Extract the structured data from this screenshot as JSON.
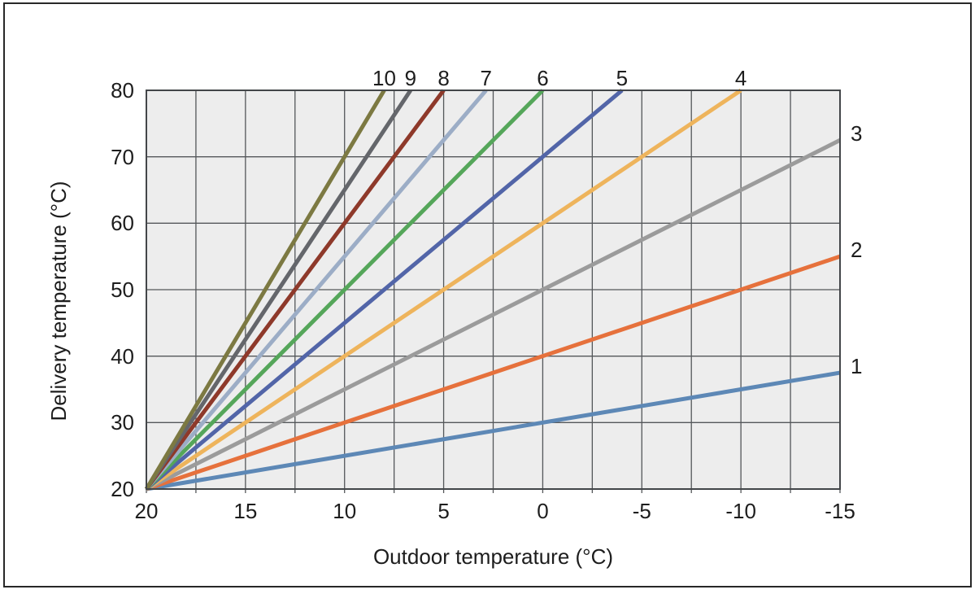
{
  "chart_data": {
    "type": "line",
    "title": "",
    "xlabel": "Outdoor temperature (°C)",
    "ylabel": "Delivery temperature (°C)",
    "xlim": [
      20,
      -15
    ],
    "ylim": [
      20,
      80
    ],
    "x_axis_reversed": true,
    "x_major_ticks": [
      20,
      15,
      10,
      5,
      0,
      -5,
      -10,
      -15
    ],
    "x_grid_step": 2.5,
    "y_ticks": [
      20,
      30,
      40,
      50,
      60,
      70,
      80
    ],
    "y_grid_step": 10,
    "grid": true,
    "legend_position": "labels-on-curves",
    "plot_bg_color": "#ededed",
    "grid_color": "#54575a",
    "plot_border_color": "#434649",
    "text_color": "#1d1d1d",
    "convergence_point": [
      20,
      20
    ],
    "curves": [
      {
        "label": "1",
        "slope": 0.5,
        "color": "#5d88b6",
        "points": [
          [
            20,
            20
          ],
          [
            -15,
            37.5
          ]
        ],
        "label_side": "right"
      },
      {
        "label": "2",
        "slope": 1.0,
        "color": "#e6713c",
        "points": [
          [
            20,
            20
          ],
          [
            -15,
            55
          ]
        ],
        "label_side": "right"
      },
      {
        "label": "3",
        "slope": 1.5,
        "color": "#9b9b9b",
        "points": [
          [
            20,
            20
          ],
          [
            -15,
            72.5
          ]
        ],
        "label_side": "right"
      },
      {
        "label": "4",
        "slope": 2.0,
        "color": "#eeb45c",
        "points": [
          [
            20,
            20
          ],
          [
            -10,
            80
          ]
        ],
        "label_side": "top"
      },
      {
        "label": "5",
        "slope": 2.5,
        "color": "#5265a8",
        "points": [
          [
            20,
            20
          ],
          [
            -4,
            80
          ]
        ],
        "label_side": "top"
      },
      {
        "label": "6",
        "slope": 3.0,
        "color": "#55a65a",
        "points": [
          [
            20,
            20
          ],
          [
            0,
            80
          ]
        ],
        "label_side": "top"
      },
      {
        "label": "7",
        "slope": 3.5,
        "color": "#9cadc6",
        "points": [
          [
            20,
            20
          ],
          [
            2.86,
            80
          ]
        ],
        "label_side": "top"
      },
      {
        "label": "8",
        "slope": 4.0,
        "color": "#8e392a",
        "points": [
          [
            20,
            20
          ],
          [
            5,
            80
          ]
        ],
        "label_side": "top"
      },
      {
        "label": "9",
        "slope": 4.5,
        "color": "#64666b",
        "points": [
          [
            20,
            20
          ],
          [
            6.67,
            80
          ]
        ],
        "label_side": "top"
      },
      {
        "label": "10",
        "slope": 5.0,
        "color": "#7c7942",
        "points": [
          [
            20,
            20
          ],
          [
            8,
            80
          ]
        ],
        "label_side": "top"
      }
    ]
  }
}
